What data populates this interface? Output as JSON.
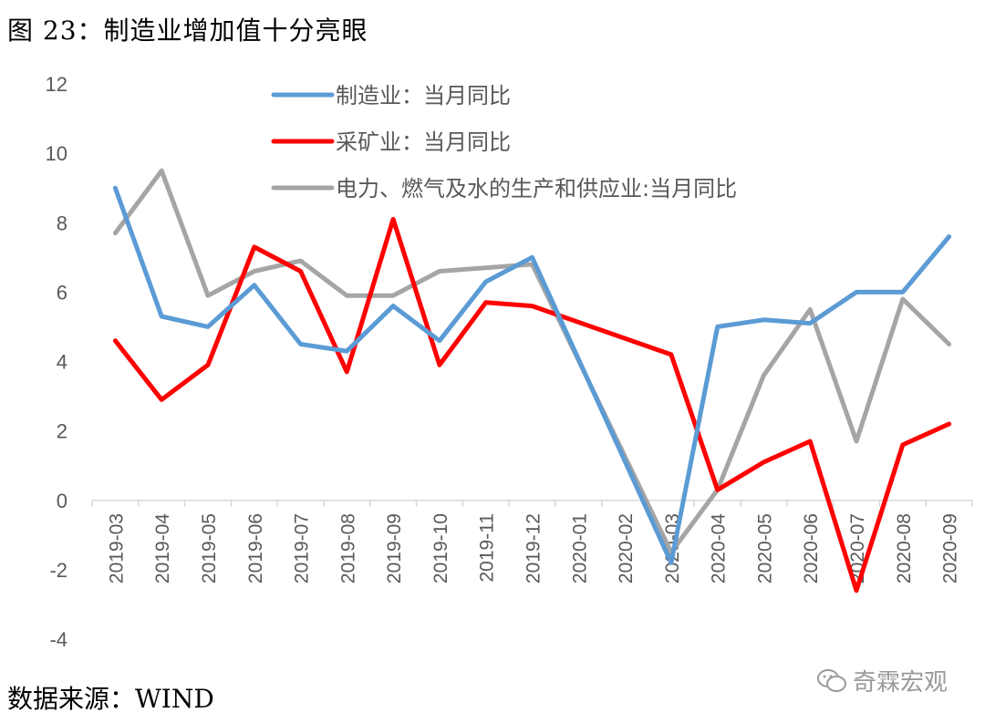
{
  "header": {
    "title": "图 23：制造业增加值十分亮眼"
  },
  "footer": {
    "source": "数据来源：WIND"
  },
  "watermark": {
    "text": "奇霖宏观",
    "icon": "wechat-icon"
  },
  "chart_data": {
    "type": "line",
    "title": "图 23：制造业增加值十分亮眼",
    "xlabel": "",
    "ylabel": "",
    "ylim": [
      -4,
      12
    ],
    "yticks": [
      -4,
      -2,
      0,
      2,
      4,
      6,
      8,
      10,
      12
    ],
    "grid": false,
    "legend_position": "top-center",
    "categories": [
      "2019-03",
      "2019-04",
      "2019-05",
      "2019-06",
      "2019-07",
      "2019-08",
      "2019-09",
      "2019-10",
      "2019-11",
      "2019-12",
      "2020-01",
      "2020-02",
      "2020-03",
      "2020-04",
      "2020-05",
      "2020-06",
      "2020-07",
      "2020-08",
      "2020-09"
    ],
    "series": [
      {
        "name": "制造业：当月同比",
        "color": "#5b9bd5",
        "values": [
          9.0,
          5.3,
          5.0,
          6.2,
          4.5,
          4.3,
          5.6,
          4.6,
          6.3,
          7.0,
          null,
          null,
          -1.8,
          5.0,
          5.2,
          5.1,
          6.0,
          6.0,
          7.6
        ]
      },
      {
        "name": "采矿业：当月同比",
        "color": "#ff0000",
        "values": [
          4.6,
          2.9,
          3.9,
          7.3,
          6.6,
          3.7,
          8.1,
          3.9,
          5.7,
          5.6,
          null,
          null,
          4.2,
          0.3,
          1.1,
          1.7,
          -2.6,
          1.6,
          2.2
        ]
      },
      {
        "name": "电力、燃气及水的生产和供应业:当月同比",
        "color": "#a5a5a5",
        "values": [
          7.7,
          9.5,
          5.9,
          6.6,
          6.9,
          5.9,
          5.9,
          6.6,
          6.7,
          6.8,
          null,
          null,
          -1.5,
          0.3,
          3.6,
          5.5,
          1.7,
          5.8,
          4.5
        ]
      }
    ]
  }
}
